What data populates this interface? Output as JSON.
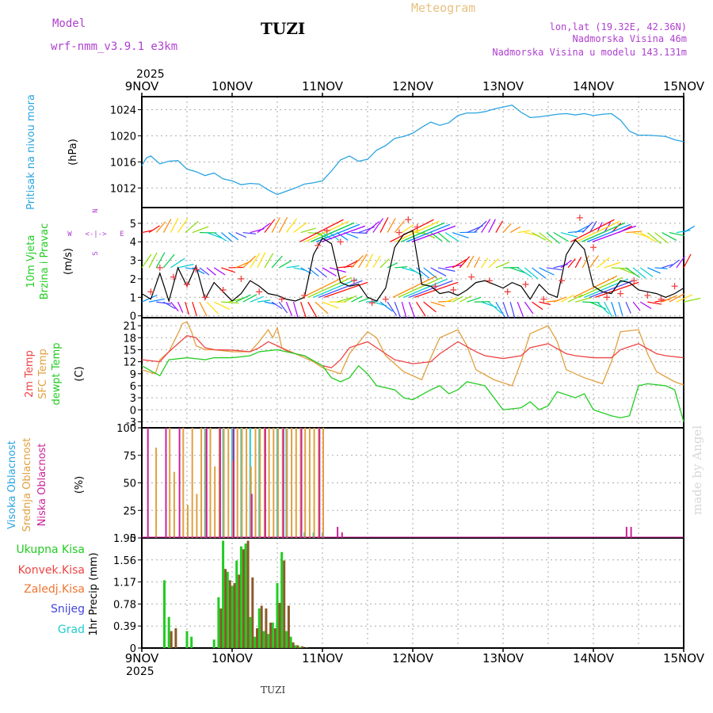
{
  "header": {
    "model_label": "Model",
    "model_name": "wrf-nmm_v3.9.1 e3km",
    "station": "TUZI",
    "meteogram": "Meteogram",
    "lonlat": "lon,lat (19.32E, 42.36N)",
    "elevation": "Nadmorska Visina 46m",
    "model_elevation": "Nadmorska Visina u modelu 143.131m",
    "year_top": "2025",
    "year_bottom": "2025",
    "footer_station": "TUZI",
    "watermark": "made by Angel"
  },
  "colors": {
    "pressure": "#2aa4e0",
    "green": "#22cc22",
    "red": "#ee4444",
    "orange": "#e0a040",
    "magenta": "#cc2299",
    "purple": "#b040d0",
    "blue": "#4444dd",
    "cyan": "#22cccc",
    "dark_green": "#6a8a2a",
    "grid": "#aaaaaa"
  },
  "chart_data": [
    {
      "type": "line",
      "title": "Pritisak na nivou mora",
      "ylabel": "(hPa)",
      "x_ticks": [
        "9NOV",
        "10NOV",
        "11NOV",
        "12NOV",
        "13NOV",
        "14NOV",
        "15NOV"
      ],
      "ylim": [
        1009,
        1026
      ],
      "yticks": [
        1012,
        1016,
        1020,
        1024
      ],
      "series": [
        {
          "name": "Pritisak",
          "x": [
            0,
            0.05,
            0.1,
            0.2,
            0.3,
            0.4,
            0.5,
            0.6,
            0.7,
            0.8,
            0.9,
            1.0,
            1.1,
            1.2,
            1.3,
            1.4,
            1.5,
            1.6,
            1.7,
            1.8,
            1.9,
            2.0,
            2.1,
            2.2,
            2.3,
            2.4,
            2.5,
            2.6,
            2.7,
            2.8,
            2.9,
            3.0,
            3.1,
            3.2,
            3.3,
            3.4,
            3.5,
            3.6,
            3.7,
            3.8,
            3.9,
            4.0,
            4.1,
            4.2,
            4.3,
            4.4,
            4.5,
            4.6,
            4.7,
            4.8,
            4.9,
            5.0,
            5.1,
            5.2,
            5.3,
            5.4,
            5.5,
            5.6,
            5.7,
            5.8,
            5.9,
            6.0
          ],
          "values": [
            1015.4,
            1016.6,
            1016.9,
            1015.7,
            1016.1,
            1016.2,
            1014.9,
            1014.5,
            1013.9,
            1014.3,
            1013.4,
            1013.1,
            1012.5,
            1012.7,
            1012.6,
            1011.7,
            1011.0,
            1011.5,
            1012.0,
            1012.6,
            1012.8,
            1013.1,
            1014.6,
            1016.3,
            1016.9,
            1016.1,
            1016.4,
            1017.8,
            1018.5,
            1019.6,
            1019.9,
            1020.4,
            1021.3,
            1022.1,
            1021.6,
            1022.0,
            1023.1,
            1023.5,
            1023.5,
            1023.7,
            1024.1,
            1024.4,
            1024.7,
            1023.6,
            1022.8,
            1022.9,
            1023.1,
            1023.3,
            1023.4,
            1023.2,
            1023.4,
            1023.1,
            1023.3,
            1023.4,
            1022.4,
            1020.7,
            1020.1,
            1020.1,
            1020.0,
            1019.9,
            1019.4,
            1019.1
          ]
        }
      ]
    },
    {
      "type": "line",
      "title": "10m Vjetar Brzina i Pravac",
      "ylabel": "(m/s)",
      "compass": [
        "N",
        "E",
        "S",
        "W"
      ],
      "ylim": [
        -0.1,
        5.85
      ],
      "yticks": [
        0,
        1,
        2,
        3,
        4,
        5
      ],
      "vector_rows": [
        4.5,
        2.6,
        0.75
      ],
      "series": [
        {
          "name": "Brzina",
          "x": [
            0,
            0.1,
            0.2,
            0.3,
            0.4,
            0.5,
            0.6,
            0.7,
            0.8,
            0.9,
            1.0,
            1.1,
            1.2,
            1.3,
            1.4,
            1.5,
            1.6,
            1.7,
            1.8,
            1.9,
            2.0,
            2.1,
            2.2,
            2.3,
            2.4,
            2.5,
            2.6,
            2.7,
            2.8,
            2.9,
            3.0,
            3.1,
            3.2,
            3.3,
            3.4,
            3.5,
            3.6,
            3.7,
            3.8,
            3.9,
            4.0,
            4.1,
            4.2,
            4.3,
            4.4,
            4.5,
            4.6,
            4.7,
            4.8,
            4.9,
            5.0,
            5.1,
            5.2,
            5.3,
            5.4,
            5.5,
            5.6,
            5.7,
            5.8,
            5.9,
            6.0
          ],
          "values": [
            1.2,
            0.9,
            2.3,
            0.8,
            2.6,
            1.6,
            2.7,
            0.9,
            1.8,
            1.3,
            0.8,
            1.2,
            1.9,
            1.6,
            1.2,
            1.1,
            0.9,
            0.8,
            1.0,
            3.3,
            4.2,
            3.9,
            1.8,
            1.6,
            1.7,
            1.0,
            0.8,
            1.5,
            3.7,
            4.4,
            4.6,
            1.7,
            1.6,
            1.2,
            1.3,
            1.1,
            1.4,
            1.8,
            1.9,
            1.7,
            1.5,
            1.8,
            1.6,
            0.9,
            1.7,
            1.2,
            1.0,
            3.3,
            4.1,
            3.6,
            1.6,
            1.3,
            1.2,
            1.9,
            1.8,
            1.4,
            1.3,
            1.2,
            1.0,
            1.2,
            1.5
          ]
        },
        {
          "name": "Udari",
          "x": [
            0.1,
            0.2,
            0.35,
            0.5,
            0.6,
            0.7,
            0.9,
            1.1,
            1.3,
            1.55,
            1.8,
            1.95,
            2.05,
            2.2,
            2.35,
            2.55,
            2.7,
            2.85,
            2.95,
            3.05,
            3.25,
            3.45,
            3.65,
            3.85,
            4.05,
            4.25,
            4.45,
            4.65,
            4.85,
            5.0,
            5.15,
            5.3,
            5.45,
            5.6,
            5.75,
            5.9
          ],
          "values": [
            1.3,
            2.6,
            2.1,
            1.7,
            2.5,
            1.0,
            1.4,
            2.0,
            1.3,
            0.9,
            1.1,
            3.8,
            4.6,
            4.0,
            1.9,
            0.7,
            0.9,
            4.5,
            5.2,
            4.8,
            1.6,
            1.4,
            2.1,
            1.9,
            1.3,
            1.7,
            0.9,
            1.9,
            5.3,
            3.7,
            1.0,
            1.2,
            1.9,
            1.1,
            0.9,
            1.6
          ]
        }
      ]
    },
    {
      "type": "line",
      "ylabels": [
        "2m Temp",
        "SFC Temp",
        "dewpt Temp"
      ],
      "ylabel": "(C)",
      "ylim": [
        -4.5,
        23
      ],
      "yticks": [
        -3,
        0,
        3,
        6,
        9,
        12,
        15,
        18,
        21
      ],
      "series": [
        {
          "name": "2m Temp",
          "x": [
            0,
            0.2,
            0.3,
            0.4,
            0.5,
            0.6,
            0.7,
            0.8,
            1.0,
            1.2,
            1.3,
            1.4,
            1.5,
            1.6,
            1.7,
            1.8,
            2.0,
            2.1,
            2.2,
            2.3,
            2.5,
            2.7,
            2.8,
            3.0,
            3.2,
            3.3,
            3.5,
            3.7,
            3.8,
            4.0,
            4.2,
            4.3,
            4.5,
            4.7,
            4.8,
            5.0,
            5.2,
            5.3,
            5.5,
            5.7,
            5.8,
            6.0
          ],
          "values": [
            12.5,
            12.0,
            14.5,
            16.5,
            18.5,
            18.0,
            15.5,
            15.0,
            14.9,
            14.5,
            15.5,
            17.0,
            16.0,
            14.8,
            14.0,
            13.5,
            11.0,
            10.5,
            12.5,
            15.5,
            17.0,
            14.0,
            12.5,
            11.5,
            12.0,
            14.0,
            17.0,
            14.5,
            13.5,
            12.8,
            13.5,
            15.5,
            16.5,
            14.0,
            13.5,
            13.0,
            13.0,
            15.0,
            16.5,
            14.0,
            13.5,
            13.0
          ]
        },
        {
          "name": "SFC Temp",
          "x": [
            0,
            0.15,
            0.2,
            0.3,
            0.4,
            0.45,
            0.5,
            0.55,
            0.6,
            0.7,
            0.8,
            1.0,
            1.2,
            1.3,
            1.4,
            1.45,
            1.5,
            1.55,
            1.6,
            1.7,
            1.8,
            1.9,
            2.0,
            2.2,
            2.3,
            2.5,
            2.6,
            2.7,
            2.9,
            3.1,
            3.2,
            3.3,
            3.5,
            3.6,
            3.7,
            3.9,
            4.1,
            4.2,
            4.3,
            4.5,
            4.6,
            4.7,
            4.9,
            5.1,
            5.2,
            5.3,
            5.5,
            5.6,
            5.7,
            5.9,
            6.0
          ],
          "values": [
            10.0,
            9.0,
            12.5,
            14.5,
            19.0,
            21.5,
            22.0,
            19.5,
            16.0,
            15.0,
            15.0,
            14.5,
            14.5,
            17.0,
            20.0,
            18.0,
            20.5,
            15.5,
            15.0,
            14.0,
            13.0,
            12.0,
            10.5,
            9.0,
            14.0,
            19.5,
            18.0,
            13.5,
            9.5,
            7.5,
            13.0,
            18.0,
            20.0,
            16.0,
            10.0,
            7.5,
            6.0,
            12.0,
            19.0,
            21.0,
            17.0,
            10.0,
            8.0,
            6.5,
            12.0,
            19.5,
            20.0,
            14.0,
            9.5,
            7.0,
            6.2
          ]
        },
        {
          "name": "dewpt Temp",
          "x": [
            0,
            0.2,
            0.3,
            0.5,
            0.7,
            0.8,
            1.0,
            1.2,
            1.3,
            1.5,
            1.7,
            1.8,
            2.0,
            2.1,
            2.2,
            2.3,
            2.4,
            2.5,
            2.6,
            2.8,
            2.9,
            3.0,
            3.2,
            3.3,
            3.4,
            3.5,
            3.6,
            3.8,
            3.9,
            4.0,
            4.2,
            4.3,
            4.4,
            4.5,
            4.6,
            4.8,
            4.9,
            5.0,
            5.2,
            5.3,
            5.4,
            5.5,
            5.6,
            5.8,
            5.9,
            6.0
          ],
          "values": [
            11.0,
            8.5,
            12.5,
            13.0,
            12.5,
            13.0,
            13.0,
            13.5,
            14.5,
            15.0,
            14.0,
            13.5,
            11.0,
            8.0,
            7.0,
            8.0,
            11.0,
            9.0,
            6.0,
            5.0,
            3.0,
            2.5,
            5.0,
            6.0,
            4.0,
            5.0,
            7.0,
            6.0,
            3.0,
            0.0,
            0.5,
            2.0,
            0.0,
            1.0,
            4.5,
            3.0,
            4.0,
            0.0,
            -1.5,
            -2.0,
            -1.5,
            6.0,
            6.5,
            6.0,
            5.0,
            -3.0
          ]
        }
      ]
    },
    {
      "type": "bar",
      "ylabels": [
        "Visoka Oblacnost",
        "Srednja Oblacnost",
        "Niska Oblacnost"
      ],
      "ylabel": "(%)",
      "ylim": [
        0,
        100
      ],
      "yticks": [
        0,
        25,
        50,
        75,
        100
      ],
      "series": [
        {
          "name": "Visoka Oblacnost",
          "x": [
            0.7,
            0.9,
            1.0,
            1.1,
            1.2,
            1.3,
            1.5,
            1.6,
            1.8,
            1.9,
            2.0
          ],
          "values": [
            100,
            100,
            100,
            100,
            100,
            100,
            100,
            100,
            5,
            5,
            5
          ]
        },
        {
          "name": "Srednja Oblacnost",
          "x": [
            0.15,
            0.3,
            0.35,
            0.45,
            0.5,
            0.55,
            0.6,
            0.65,
            0.7,
            0.75,
            0.8,
            0.85,
            0.9,
            0.95,
            1.0,
            1.05,
            1.1,
            1.15,
            1.2,
            1.25,
            1.3,
            1.35,
            1.4,
            1.45,
            1.5,
            1.55,
            1.6,
            1.65,
            1.7,
            1.75,
            1.8,
            1.85,
            1.9,
            1.95,
            2.0
          ],
          "values": [
            82,
            100,
            60,
            100,
            30,
            100,
            40,
            100,
            100,
            100,
            65,
            100,
            100,
            100,
            70,
            100,
            100,
            100,
            65,
            100,
            100,
            100,
            100,
            100,
            100,
            100,
            100,
            100,
            100,
            100,
            100,
            100,
            100,
            100,
            100
          ]
        },
        {
          "name": "Niska Oblacnost",
          "x": [
            0.05,
            0.25,
            0.4,
            0.7,
            0.85,
            1.0,
            1.2,
            1.35,
            1.55,
            1.75,
            1.95,
            2.15,
            2.2,
            5.35,
            5.4
          ],
          "values": [
            100,
            100,
            100,
            100,
            100,
            100,
            40,
            100,
            100,
            100,
            100,
            10,
            5,
            10,
            10
          ]
        }
      ]
    },
    {
      "type": "bar",
      "ylabels": [
        "Ukupna Kisa",
        "Konvek.Kisa",
        "Zaledj.Kisa",
        "Snijeg",
        "Grad"
      ],
      "ylabel": "1hr Precip (mm)",
      "ylim": [
        0,
        1.95
      ],
      "yticks": [
        0,
        0.39,
        0.78,
        1.17,
        1.56,
        1.95
      ],
      "x_ticks_bottom": [
        "9NOV",
        "10NOV",
        "11NOV",
        "12NOV",
        "13NOV",
        "14NOV",
        "15NOV"
      ],
      "series": [
        {
          "name": "Ukupna Kisa",
          "x": [
            0.25,
            0.3,
            0.5,
            0.55,
            0.8,
            0.85,
            0.9,
            0.95,
            1.0,
            1.05,
            1.1,
            1.15,
            1.2,
            1.25,
            1.3,
            1.35,
            1.4,
            1.45,
            1.5,
            1.55,
            1.6,
            1.65,
            1.7,
            1.75
          ],
          "values": [
            1.2,
            0.55,
            0.3,
            0.2,
            0.15,
            0.9,
            1.9,
            1.35,
            1.1,
            1.55,
            1.8,
            1.85,
            0.55,
            0.2,
            0.7,
            0.3,
            0.25,
            0.45,
            1.15,
            1.7,
            0.3,
            0.2,
            0.05,
            0.02
          ]
        },
        {
          "name": "Konvek.Kisa",
          "x": [
            0.3,
            0.35,
            0.85,
            0.9,
            0.95,
            1.0,
            1.05,
            1.1,
            1.15,
            1.2,
            1.25,
            1.3,
            1.35,
            1.4,
            1.45,
            1.5,
            1.55,
            1.6,
            1.65,
            1.7,
            1.75,
            1.8
          ],
          "values": [
            0.3,
            0.35,
            0.7,
            1.4,
            1.2,
            1.15,
            1.3,
            1.75,
            1.9,
            1.25,
            0.35,
            0.75,
            0.7,
            0.45,
            0.35,
            0.8,
            1.55,
            0.75,
            0.1,
            0.05,
            0.03,
            0.01
          ]
        }
      ]
    }
  ]
}
